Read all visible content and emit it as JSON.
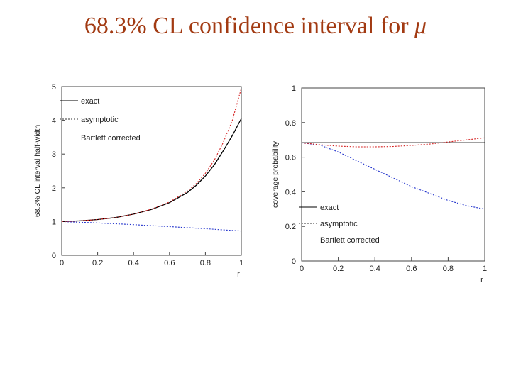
{
  "slide": {
    "title_text": "68.3% CL confidence interval for ",
    "title_symbol": "μ"
  },
  "colors": {
    "title": "#a23a12",
    "exact": "#000000",
    "asymptotic": "#2233cc",
    "bartlett": "#d42020"
  },
  "chart_data": [
    {
      "type": "line",
      "ylabel": "68.3% CL interval half-width",
      "xlabel": "r",
      "xlim": [
        0,
        1
      ],
      "ylim": [
        0,
        5
      ],
      "xticks": [
        "0",
        "0.2",
        "0.4",
        "0.6",
        "0.8",
        "1"
      ],
      "yticks": [
        "0",
        "1",
        "2",
        "3",
        "4",
        "5"
      ],
      "legend": [
        "exact",
        "asymptotic",
        "Bartlett corrected"
      ],
      "legend_position": "top-left",
      "series": [
        {
          "name": "exact",
          "style": "solid",
          "x": [
            0,
            0.1,
            0.2,
            0.3,
            0.4,
            0.5,
            0.6,
            0.7,
            0.75,
            0.8,
            0.85,
            0.9,
            0.95,
            1.0
          ],
          "y": [
            1.0,
            1.02,
            1.06,
            1.12,
            1.22,
            1.36,
            1.56,
            1.86,
            2.08,
            2.35,
            2.68,
            3.1,
            3.55,
            4.05
          ]
        },
        {
          "name": "asymptotic",
          "style": "dotted",
          "x": [
            0,
            0.2,
            0.4,
            0.6,
            0.8,
            1.0
          ],
          "y": [
            1.0,
            0.96,
            0.91,
            0.85,
            0.79,
            0.72
          ]
        },
        {
          "name": "Bartlett corrected",
          "style": "dotted",
          "x": [
            0,
            0.1,
            0.2,
            0.3,
            0.4,
            0.5,
            0.6,
            0.7,
            0.75,
            0.8,
            0.85,
            0.9,
            0.95,
            1.0
          ],
          "y": [
            1.0,
            1.02,
            1.06,
            1.12,
            1.22,
            1.37,
            1.58,
            1.9,
            2.13,
            2.43,
            2.82,
            3.35,
            4.0,
            4.95
          ]
        }
      ]
    },
    {
      "type": "line",
      "ylabel": "coverage probability",
      "xlabel": "r",
      "xlim": [
        0,
        1
      ],
      "ylim": [
        0,
        1
      ],
      "xticks": [
        "0",
        "0.2",
        "0.4",
        "0.6",
        "0.8",
        "1"
      ],
      "yticks": [
        "0",
        "0.2",
        "0.4",
        "0.6",
        "0.8",
        "1"
      ],
      "legend": [
        "exact",
        "asymptotic",
        "Bartlett corrected"
      ],
      "legend_position": "bottom-left",
      "series": [
        {
          "name": "exact",
          "style": "solid",
          "x": [
            0,
            1
          ],
          "y": [
            0.683,
            0.683
          ]
        },
        {
          "name": "asymptotic",
          "style": "dotted",
          "x": [
            0,
            0.1,
            0.2,
            0.3,
            0.4,
            0.5,
            0.6,
            0.7,
            0.8,
            0.9,
            1.0
          ],
          "y": [
            0.683,
            0.67,
            0.63,
            0.58,
            0.53,
            0.48,
            0.43,
            0.39,
            0.35,
            0.32,
            0.3
          ]
        },
        {
          "name": "Bartlett corrected",
          "style": "dotted",
          "x": [
            0,
            0.1,
            0.2,
            0.3,
            0.4,
            0.5,
            0.6,
            0.7,
            0.8,
            0.9,
            1.0
          ],
          "y": [
            0.683,
            0.672,
            0.664,
            0.66,
            0.66,
            0.662,
            0.668,
            0.676,
            0.688,
            0.7,
            0.712
          ]
        }
      ]
    }
  ]
}
